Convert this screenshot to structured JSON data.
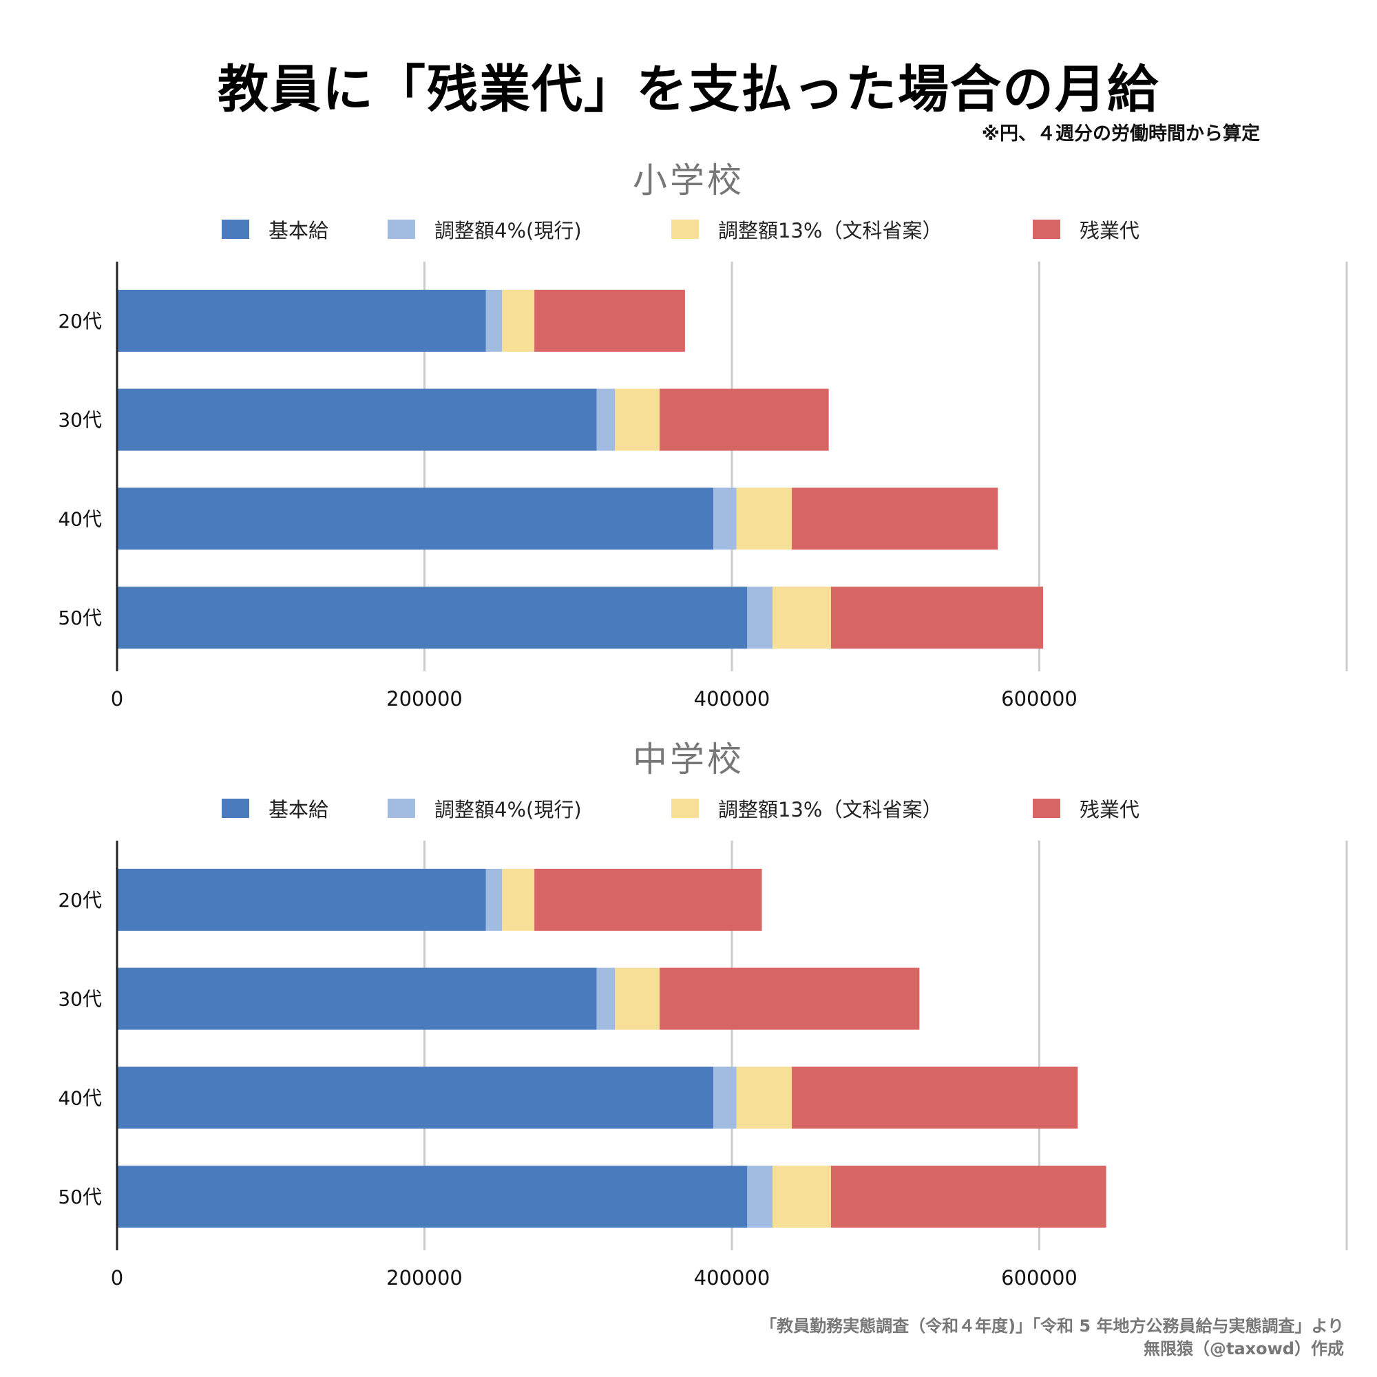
{
  "title": "教員に「残業代」を支払った場合の月給",
  "subtitle": "※円、４週分の労働時間から算定",
  "legend": [
    {
      "label": "基本給",
      "color": "#4a7bbd"
    },
    {
      "label": "調整額4%(現行)",
      "color": "#a2bbe0"
    },
    {
      "label": "調整額13%（文科省案）",
      "color": "#f7df97"
    },
    {
      "label": "残業代",
      "color": "#d66563"
    }
  ],
  "chart_data": [
    {
      "type": "bar",
      "orientation": "horizontal",
      "stacked": true,
      "title": "小学校",
      "categories": [
        "20代",
        "30代",
        "40代",
        "50代"
      ],
      "series": [
        {
          "name": "基本給",
          "color": "#4a7bbd",
          "values": [
            240000,
            312000,
            388000,
            410000
          ]
        },
        {
          "name": "調整額4%(現行)",
          "color": "#a2bbe0",
          "values": [
            10500,
            12000,
            15000,
            16500
          ]
        },
        {
          "name": "調整額13%（文科省案）",
          "color": "#f7df97",
          "values": [
            21000,
            29000,
            36000,
            38000
          ]
        },
        {
          "name": "残業代",
          "color": "#d66563",
          "values": [
            98000,
            110000,
            134000,
            138000
          ]
        }
      ],
      "xticks": [
        "0",
        "200000",
        "400000",
        "600000"
      ],
      "xlim": [
        0,
        800000
      ],
      "grid": true,
      "legend_position": "top"
    },
    {
      "type": "bar",
      "orientation": "horizontal",
      "stacked": true,
      "title": "中学校",
      "categories": [
        "20代",
        "30代",
        "40代",
        "50代"
      ],
      "series": [
        {
          "name": "基本給",
          "color": "#4a7bbd",
          "values": [
            240000,
            312000,
            388000,
            410000
          ]
        },
        {
          "name": "調整額4%(現行)",
          "color": "#a2bbe0",
          "values": [
            10500,
            12000,
            15000,
            16500
          ]
        },
        {
          "name": "調整額13%（文科省案）",
          "color": "#f7df97",
          "values": [
            21000,
            29000,
            36000,
            38000
          ]
        },
        {
          "name": "残業代",
          "color": "#d66563",
          "values": [
            148000,
            169000,
            186000,
            179000
          ]
        }
      ],
      "xticks": [
        "0",
        "200000",
        "400000",
        "600000"
      ],
      "xlim": [
        0,
        800000
      ],
      "grid": true,
      "legend_position": "top"
    }
  ],
  "source": {
    "line1": "「教員勤務実態調査（令和４年度)」「令和 5 年地方公務員給与実態調査」より",
    "line2": "無限猿（@taxowd）作成"
  }
}
